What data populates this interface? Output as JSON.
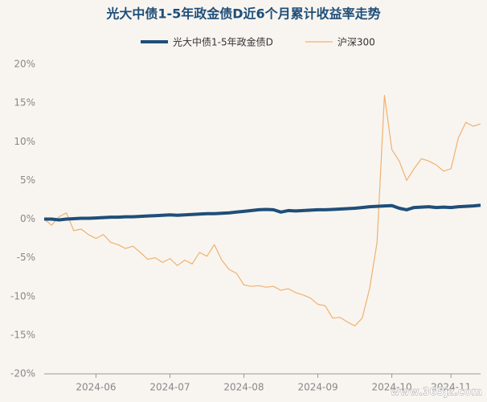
{
  "chart_data": {
    "type": "line",
    "title": "光大中债1-5年政金债D近6个月累计收益率走势",
    "watermark": "www.365jz.com",
    "categories": [
      null,
      null,
      null,
      null,
      null,
      null,
      null,
      "2024-06",
      null,
      null,
      null,
      null,
      null,
      null,
      null,
      null,
      null,
      "2024-07",
      null,
      null,
      null,
      null,
      null,
      null,
      null,
      null,
      null,
      "2024-08",
      null,
      null,
      null,
      null,
      null,
      null,
      null,
      null,
      null,
      "2024-09",
      null,
      null,
      null,
      null,
      null,
      null,
      null,
      null,
      null,
      "2024-10",
      null,
      null,
      null,
      null,
      null,
      null,
      null,
      "2024-11",
      null,
      null,
      null,
      null
    ],
    "series": [
      {
        "name": "光大中债1-5年政金债D",
        "color": "#1f4e79",
        "width": 4,
        "values": [
          0,
          0,
          -0.1,
          0,
          0.05,
          0.1,
          0.1,
          0.15,
          0.2,
          0.25,
          0.25,
          0.3,
          0.3,
          0.35,
          0.4,
          0.45,
          0.5,
          0.55,
          0.5,
          0.55,
          0.6,
          0.65,
          0.7,
          0.7,
          0.75,
          0.8,
          0.9,
          1.0,
          1.1,
          1.2,
          1.25,
          1.2,
          0.9,
          1.1,
          1.05,
          1.1,
          1.15,
          1.2,
          1.2,
          1.25,
          1.3,
          1.35,
          1.4,
          1.5,
          1.6,
          1.65,
          1.7,
          1.75,
          1.4,
          1.2,
          1.5,
          1.55,
          1.6,
          1.5,
          1.55,
          1.5,
          1.6,
          1.65,
          1.7,
          1.8
        ]
      },
      {
        "name": "沪深300",
        "color": "#f0b070",
        "width": 1.2,
        "values": [
          0,
          -0.8,
          0.3,
          0.8,
          -1.5,
          -1.3,
          -2,
          -2.5,
          -2,
          -3,
          -3.3,
          -3.8,
          -3.5,
          -4.3,
          -5.2,
          -5,
          -5.6,
          -5.1,
          -6,
          -5.3,
          -5.8,
          -4.3,
          -4.8,
          -3.3,
          -5.3,
          -6.5,
          -7,
          -8.5,
          -8.7,
          -8.6,
          -8.8,
          -8.7,
          -9.2,
          -9,
          -9.5,
          -9.8,
          -10.2,
          -11,
          -11.2,
          -12.8,
          -12.7,
          -13.3,
          -13.8,
          -12.8,
          -9,
          -3,
          16,
          9,
          7.5,
          5,
          6.5,
          7.8,
          7.5,
          7,
          6.2,
          6.5,
          10.5,
          12.5,
          12,
          12.3
        ]
      }
    ],
    "ylim": [
      -20,
      20
    ],
    "yticks": [
      {
        "value": -20,
        "label": "-20%"
      },
      {
        "value": -15,
        "label": "-15%"
      },
      {
        "value": -10,
        "label": "-10%"
      },
      {
        "value": -5,
        "label": "-5%"
      },
      {
        "value": 0,
        "label": "0%"
      },
      {
        "value": 5,
        "label": "5%"
      },
      {
        "value": 10,
        "label": "10%"
      },
      {
        "value": 15,
        "label": "15%"
      },
      {
        "value": 20,
        "label": "20%"
      }
    ],
    "grid": false
  }
}
